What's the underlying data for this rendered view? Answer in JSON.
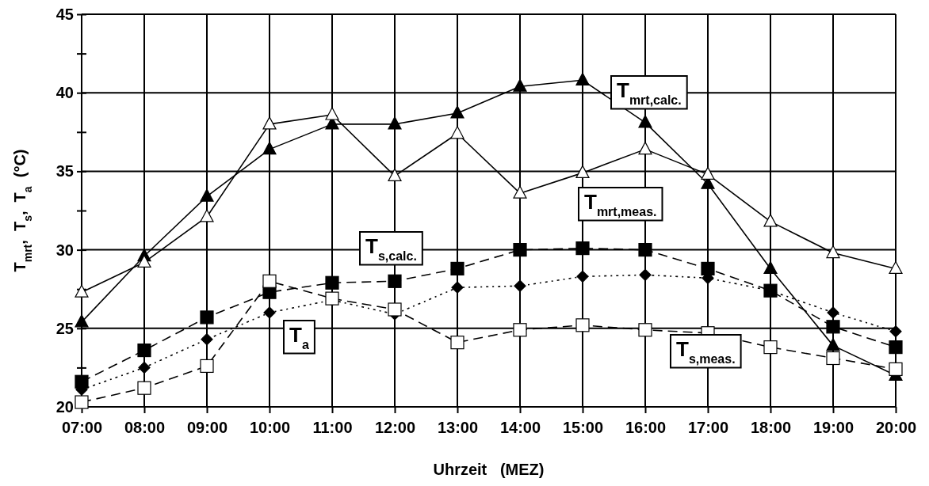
{
  "chart_data": {
    "type": "line",
    "xlabel": "Uhrzeit   (MEZ)",
    "ylabel": "T$_{mrt}$,  T$_{s}$,  T$_{a}$  (°C)",
    "categories": [
      "07:00",
      "08:00",
      "09:00",
      "10:00",
      "11:00",
      "12:00",
      "13:00",
      "14:00",
      "15:00",
      "16:00",
      "17:00",
      "18:00",
      "19:00",
      "20:00"
    ],
    "series": [
      {
        "name": "T$_{mrt,calc.}$",
        "color": "#000000",
        "marker": "triangle",
        "line_style": "solid",
        "values": [
          25.4,
          29.6,
          33.4,
          36.4,
          38.0,
          38.0,
          38.7,
          40.4,
          40.8,
          38.1,
          34.2,
          28.8,
          23.9,
          22.0
        ]
      },
      {
        "name": "T$_{mrt,meas.}$",
        "color": "#000000",
        "marker": "triangle",
        "line_style": "solid",
        "values": [
          27.3,
          29.2,
          32.1,
          38.0,
          38.6,
          34.7,
          37.4,
          33.6,
          34.9,
          36.4,
          34.8,
          31.8,
          29.8,
          28.8
        ]
      },
      {
        "name": "T$_{s,calc.}$",
        "color": "#000000",
        "marker": "square",
        "line_style": "dashed",
        "values": [
          21.6,
          23.6,
          25.7,
          27.3,
          27.9,
          28.0,
          28.8,
          30.0,
          30.1,
          30.0,
          28.8,
          27.4,
          25.1,
          23.8
        ]
      },
      {
        "name": "T$_{a}$",
        "color": "#000000",
        "marker": "diamond",
        "line_style": "dotted",
        "values": [
          21.1,
          22.5,
          24.3,
          26.0,
          26.8,
          25.9,
          27.6,
          27.7,
          28.3,
          28.4,
          28.2,
          27.4,
          26.0,
          24.8
        ]
      },
      {
        "name": "T$_{s,meas.}$",
        "color": "#000000",
        "marker": "square",
        "line_style": "dashed",
        "values": [
          20.3,
          21.2,
          22.6,
          28.0,
          26.9,
          26.2,
          24.1,
          24.9,
          25.2,
          24.9,
          24.7,
          23.8,
          23.1,
          22.4
        ]
      }
    ],
    "ylim": [
      20,
      45
    ],
    "yticks": [
      20,
      {
        "value": 22.5,
        "label": null
      },
      25,
      {
        "value": 27.5,
        "label": null
      },
      30,
      {
        "value": 32.5,
        "label": null
      },
      35,
      {
        "value": 37.5,
        "label": null
      },
      40,
      {
        "value": 42.5,
        "label": null
      },
      45
    ],
    "grid": true
  }
}
